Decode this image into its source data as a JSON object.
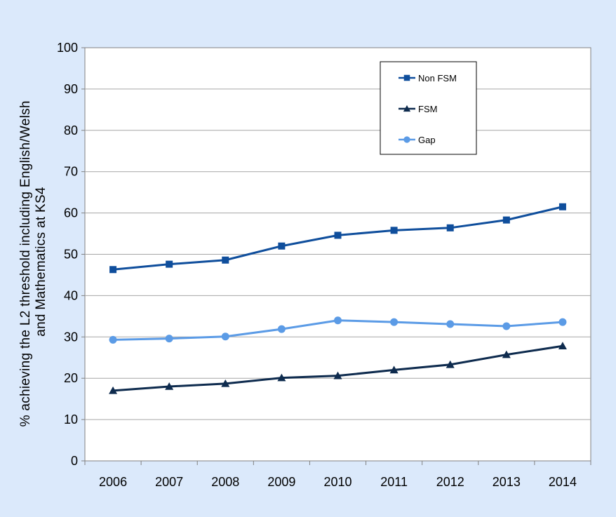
{
  "chart_data": {
    "type": "line",
    "title": "",
    "xlabel": "",
    "ylabel_lines": [
      "% achieving the L2 threshold including  English/Welsh",
      "and Mathematics at KS4"
    ],
    "categories": [
      "2006",
      "2007",
      "2008",
      "2009",
      "2010",
      "2011",
      "2012",
      "2013",
      "2014"
    ],
    "ylim": [
      0,
      100
    ],
    "yticks": [
      "0",
      "10",
      "20",
      "30",
      "40",
      "50",
      "60",
      "70",
      "80",
      "90",
      "100"
    ],
    "grid": true,
    "legend_position": "top-right",
    "series": [
      {
        "name": "Non FSM",
        "marker": "square",
        "color": "#0f4e9c",
        "values": [
          46.3,
          47.6,
          48.6,
          52.0,
          54.6,
          55.8,
          56.4,
          58.3,
          61.5
        ]
      },
      {
        "name": "FSM",
        "marker": "triangle",
        "color": "#0e2b4e",
        "values": [
          17.0,
          18.0,
          18.7,
          20.1,
          20.6,
          22.0,
          23.3,
          25.7,
          27.8
        ]
      },
      {
        "name": "Gap",
        "marker": "circle",
        "color": "#5b9be6",
        "values": [
          29.3,
          29.6,
          30.1,
          31.9,
          34.0,
          33.6,
          33.1,
          32.6,
          33.6
        ]
      }
    ]
  },
  "colors": {
    "background": "#dbe9fb",
    "plot_area": "#ffffff",
    "gridline": "#a6a6a6",
    "axis": "#808080"
  }
}
